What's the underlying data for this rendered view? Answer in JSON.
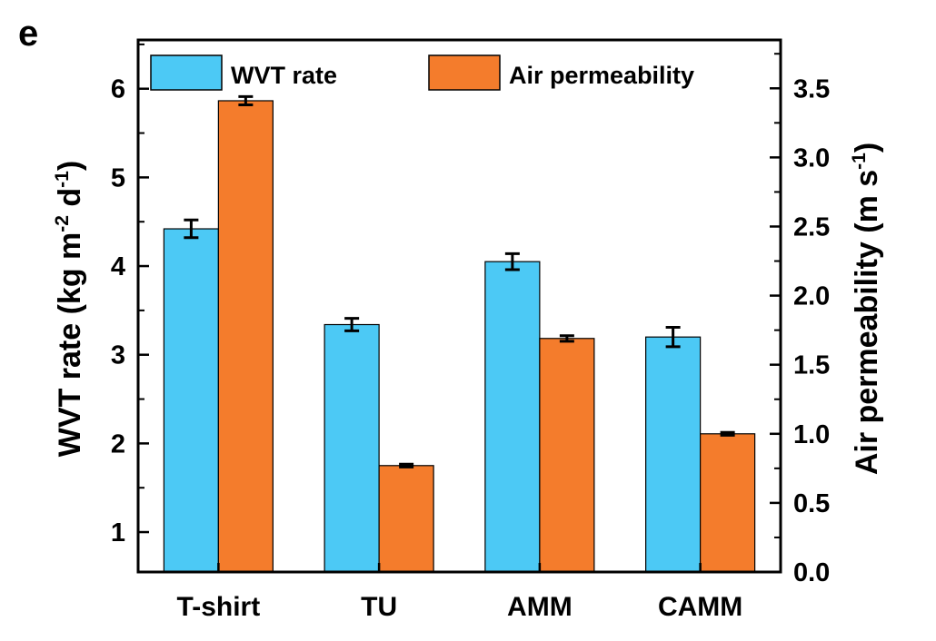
{
  "panel_label": "e",
  "colors": {
    "wvt": "#4cc9f5",
    "air": "#f47c2c",
    "frame": "#000000"
  },
  "chart_data": {
    "type": "bar",
    "categories": [
      "T-shirt",
      "TU",
      "AMM",
      "CAMM"
    ],
    "series": [
      {
        "name": "WVT rate",
        "axis": "left",
        "values": [
          4.42,
          3.34,
          4.05,
          3.2
        ],
        "errors": [
          0.1,
          0.07,
          0.09,
          0.11
        ]
      },
      {
        "name": "Air permeability",
        "axis": "right",
        "values": [
          3.41,
          0.77,
          1.69,
          1.0
        ],
        "errors": [
          0.03,
          0.01,
          0.02,
          0.01
        ]
      }
    ],
    "ylabel_left": {
      "main": "WVT rate (kg m",
      "sup1": "-2",
      "mid": " d",
      "sup2": "-1",
      "end": ")"
    },
    "ylabel_right": {
      "main": "Air permeability (m s",
      "sup": "-1",
      "end": ")"
    },
    "ylim_left": [
      0.55,
      6.55
    ],
    "ylim_right": [
      0.0,
      3.85
    ],
    "yticks_left": [
      "1",
      "2",
      "3",
      "4",
      "5",
      "6"
    ],
    "yticks_right": [
      "0.0",
      "0.5",
      "1.0",
      "1.5",
      "2.0",
      "2.5",
      "3.0",
      "3.5"
    ],
    "legend_position": "top",
    "grid": false
  }
}
